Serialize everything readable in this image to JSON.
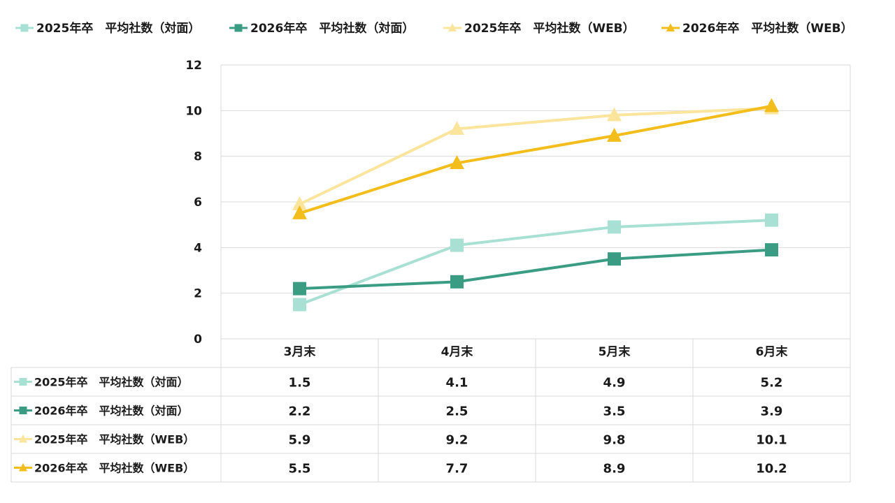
{
  "chart_data": {
    "type": "line",
    "categories": [
      "3月末",
      "4月末",
      "5月末",
      "6月末"
    ],
    "ylim": [
      0,
      12
    ],
    "yticks": [
      0,
      2,
      4,
      6,
      8,
      10,
      12
    ],
    "grid": true,
    "legend_position": "top",
    "data_table": true,
    "series": [
      {
        "name": "2025年卒　平均社数（対面）",
        "values": [
          1.5,
          4.1,
          4.9,
          5.2
        ],
        "value_labels": [
          "1.5",
          "4.1",
          "4.9",
          "5.2"
        ],
        "color": "#a8e0d3",
        "marker": "square-icon"
      },
      {
        "name": "2026年卒　平均社数（対面）",
        "values": [
          2.2,
          2.5,
          3.5,
          3.9
        ],
        "value_labels": [
          "2.2",
          "2.5",
          "3.5",
          "3.9"
        ],
        "color": "#3a9c83",
        "marker": "square-icon"
      },
      {
        "name": "2025年卒　平均社数（WEB）",
        "values": [
          5.9,
          9.2,
          9.8,
          10.1
        ],
        "value_labels": [
          "5.9",
          "9.2",
          "9.8",
          "10.1"
        ],
        "color": "#fbe49c",
        "marker": "triangle-icon"
      },
      {
        "name": "2026年卒　平均社数（WEB）",
        "values": [
          5.5,
          7.7,
          8.9,
          10.2
        ],
        "value_labels": [
          "5.5",
          "7.7",
          "8.9",
          "10.2"
        ],
        "color": "#f3bd1b",
        "marker": "triangle-icon"
      }
    ]
  }
}
